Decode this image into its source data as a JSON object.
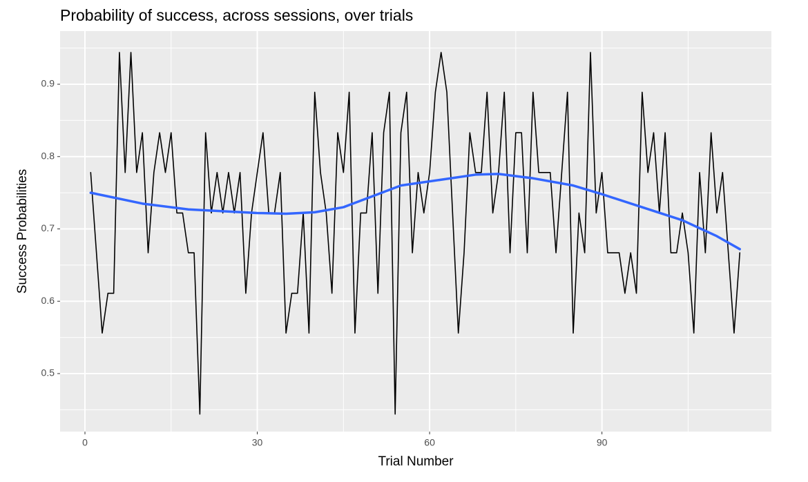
{
  "chart_data": {
    "type": "line",
    "title": "Probability of success, across sessions, over trials",
    "x_label": "Trial Number",
    "y_label": "Success Probabilities",
    "xlim": [
      -4.33,
      119.5
    ],
    "ylim": [
      0.4198,
      0.9735
    ],
    "xticks": [
      0,
      30,
      60,
      90
    ],
    "yticks": [
      0.5,
      0.6,
      0.7,
      0.8,
      0.9
    ],
    "grid": true,
    "series": [
      {
        "color": "#000000",
        "x": [
          1,
          2,
          3,
          4,
          5,
          6,
          7,
          8,
          9,
          10,
          11,
          12,
          13,
          14,
          15,
          16,
          17,
          18,
          19,
          20,
          21,
          22,
          23,
          24,
          25,
          26,
          27,
          28,
          29,
          30,
          31,
          32,
          33,
          34,
          35,
          36,
          37,
          38,
          39,
          40,
          41,
          42,
          43,
          44,
          45,
          46,
          47,
          48,
          49,
          50,
          51,
          52,
          53,
          54,
          55,
          56,
          57,
          58,
          59,
          60,
          61,
          62,
          63,
          64,
          65,
          66,
          67,
          68,
          69,
          70,
          71,
          72,
          73,
          74,
          75,
          76,
          77,
          78,
          79,
          80,
          81,
          82,
          83,
          84,
          85,
          86,
          87,
          88,
          89,
          90,
          91,
          92,
          93,
          94,
          95,
          96,
          97,
          98,
          99,
          100,
          101,
          102,
          103,
          104,
          105,
          106,
          107,
          108,
          109,
          110,
          111,
          112,
          113,
          114
        ],
        "values": [
          0.778,
          0.667,
          0.556,
          0.611,
          0.611,
          0.944,
          0.778,
          0.944,
          0.778,
          0.833,
          0.667,
          0.778,
          0.833,
          0.778,
          0.833,
          0.722,
          0.722,
          0.667,
          0.667,
          0.444,
          0.833,
          0.722,
          0.778,
          0.722,
          0.778,
          0.722,
          0.778,
          0.611,
          0.722,
          0.778,
          0.833,
          0.722,
          0.722,
          0.778,
          0.556,
          0.611,
          0.611,
          0.722,
          0.556,
          0.889,
          0.778,
          0.722,
          0.611,
          0.833,
          0.778,
          0.889,
          0.556,
          0.722,
          0.722,
          0.833,
          0.611,
          0.833,
          0.889,
          0.444,
          0.833,
          0.889,
          0.667,
          0.778,
          0.722,
          0.778,
          0.889,
          0.944,
          0.889,
          0.722,
          0.556,
          0.667,
          0.833,
          0.778,
          0.778,
          0.889,
          0.722,
          0.778,
          0.889,
          0.667,
          0.833,
          0.833,
          0.667,
          0.889,
          0.778,
          0.778,
          0.778,
          0.667,
          0.778,
          0.889,
          0.556,
          0.722,
          0.667,
          0.944,
          0.722,
          0.778,
          0.667,
          0.667,
          0.667,
          0.611,
          0.667,
          0.611,
          0.889,
          0.778,
          0.833,
          0.722,
          0.833,
          0.667,
          0.667,
          0.722,
          0.667,
          0.556,
          0.778,
          0.667,
          0.833,
          0.722,
          0.778,
          0.667,
          0.556,
          0.667
        ]
      },
      {
        "color": "#3366ff",
        "x": [
          1,
          10,
          18,
          30,
          35,
          40,
          45,
          50,
          55,
          62,
          68,
          72,
          78,
          85,
          90,
          97,
          104,
          110,
          114
        ],
        "values": [
          0.75,
          0.735,
          0.727,
          0.722,
          0.721,
          0.723,
          0.73,
          0.745,
          0.76,
          0.768,
          0.775,
          0.776,
          0.77,
          0.76,
          0.748,
          0.73,
          0.712,
          0.69,
          0.672
        ]
      }
    ]
  }
}
